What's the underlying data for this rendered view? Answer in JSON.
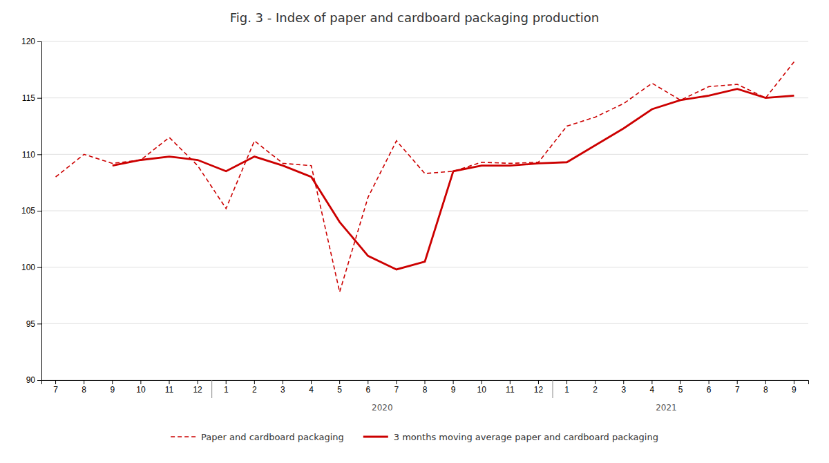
{
  "chart_data": {
    "type": "line",
    "title": "Fig. 3 - Index of paper and cardboard packaging production",
    "categories": [
      "7",
      "8",
      "9",
      "10",
      "11",
      "12",
      "1",
      "2",
      "3",
      "4",
      "5",
      "6",
      "7",
      "8",
      "9",
      "10",
      "11",
      "12",
      "1",
      "2",
      "3",
      "4",
      "5",
      "6",
      "7",
      "8",
      "9"
    ],
    "series": [
      {
        "name": "Paper and cardboard packaging",
        "color": "#cc0000",
        "line_style": "dashed",
        "values": [
          108.0,
          110.0,
          109.2,
          109.5,
          111.5,
          109.0,
          105.2,
          111.2,
          109.2,
          109.0,
          97.8,
          106.2,
          111.2,
          108.3,
          108.5,
          109.3,
          109.2,
          109.3,
          112.5,
          113.3,
          114.5,
          116.3,
          114.8,
          116.0,
          116.2,
          115.0,
          118.2
        ]
      },
      {
        "name": "3 months moving average paper and cardboard packaging",
        "color": "#cc0000",
        "line_style": "solid",
        "values": [
          null,
          null,
          109.0,
          109.5,
          109.8,
          109.5,
          108.5,
          109.8,
          109.0,
          108.0,
          104.0,
          101.0,
          99.8,
          100.5,
          108.5,
          109.0,
          109.0,
          109.2,
          109.3,
          110.8,
          112.3,
          114.0,
          114.8,
          115.2,
          115.8,
          115.0,
          115.2
        ]
      }
    ],
    "ylim": [
      90,
      120
    ],
    "yticks": [
      90,
      95,
      100,
      105,
      110,
      115,
      120
    ],
    "grid": true,
    "legend": "bottom",
    "annotations": [
      {
        "text": "2020",
        "x": 11.5
      },
      {
        "text": "2021",
        "x": 21.5
      }
    ]
  }
}
